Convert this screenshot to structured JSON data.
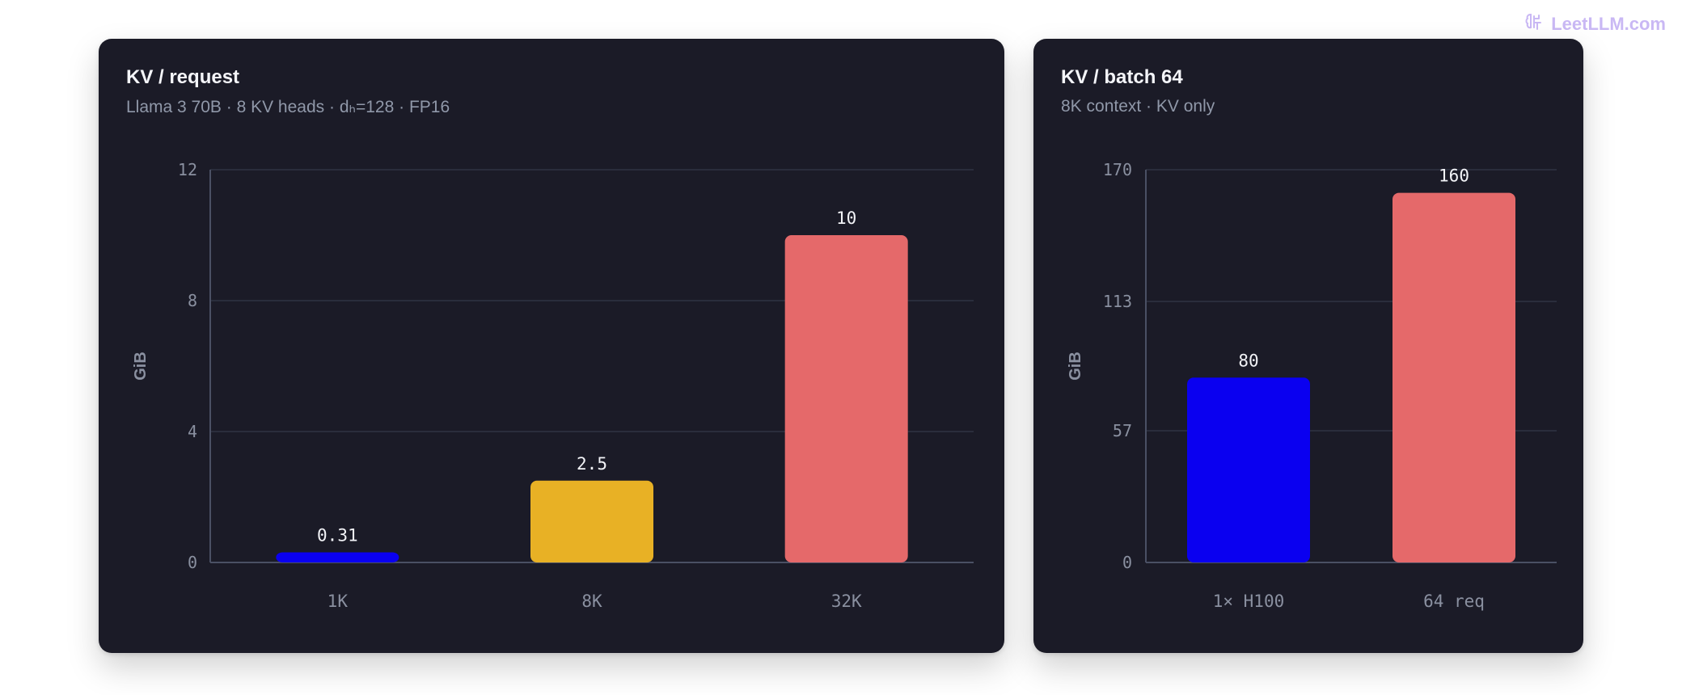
{
  "watermark": {
    "text": "LeetLLM.com",
    "icon": "brain-icon",
    "color": "#c9b8f4"
  },
  "chart_data": [
    {
      "type": "bar",
      "title": "KV / request",
      "subtitle": "Llama 3 70B · 8 KV heads · dₕ=128 · FP16",
      "xlabel": "",
      "ylabel": "GiB",
      "categories": [
        "1K",
        "8K",
        "32K"
      ],
      "values": [
        0.31,
        2.5,
        10
      ],
      "value_labels": [
        "0.31",
        "2.5",
        "10"
      ],
      "colors": [
        "#0a00f0",
        "#e8b125",
        "#e5696a"
      ],
      "ylim": [
        0,
        12
      ],
      "yticks": [
        0,
        4,
        8,
        12
      ],
      "grid": true
    },
    {
      "type": "bar",
      "title": "KV / batch 64",
      "subtitle": "8K context · KV only",
      "xlabel": "",
      "ylabel": "GiB",
      "categories": [
        "1× H100",
        "64 req"
      ],
      "values": [
        80,
        160
      ],
      "value_labels": [
        "80",
        "160"
      ],
      "colors": [
        "#0a00f0",
        "#e5696a"
      ],
      "ylim": [
        0,
        170
      ],
      "yticks": [
        0,
        57,
        113,
        170
      ],
      "grid": true
    }
  ]
}
